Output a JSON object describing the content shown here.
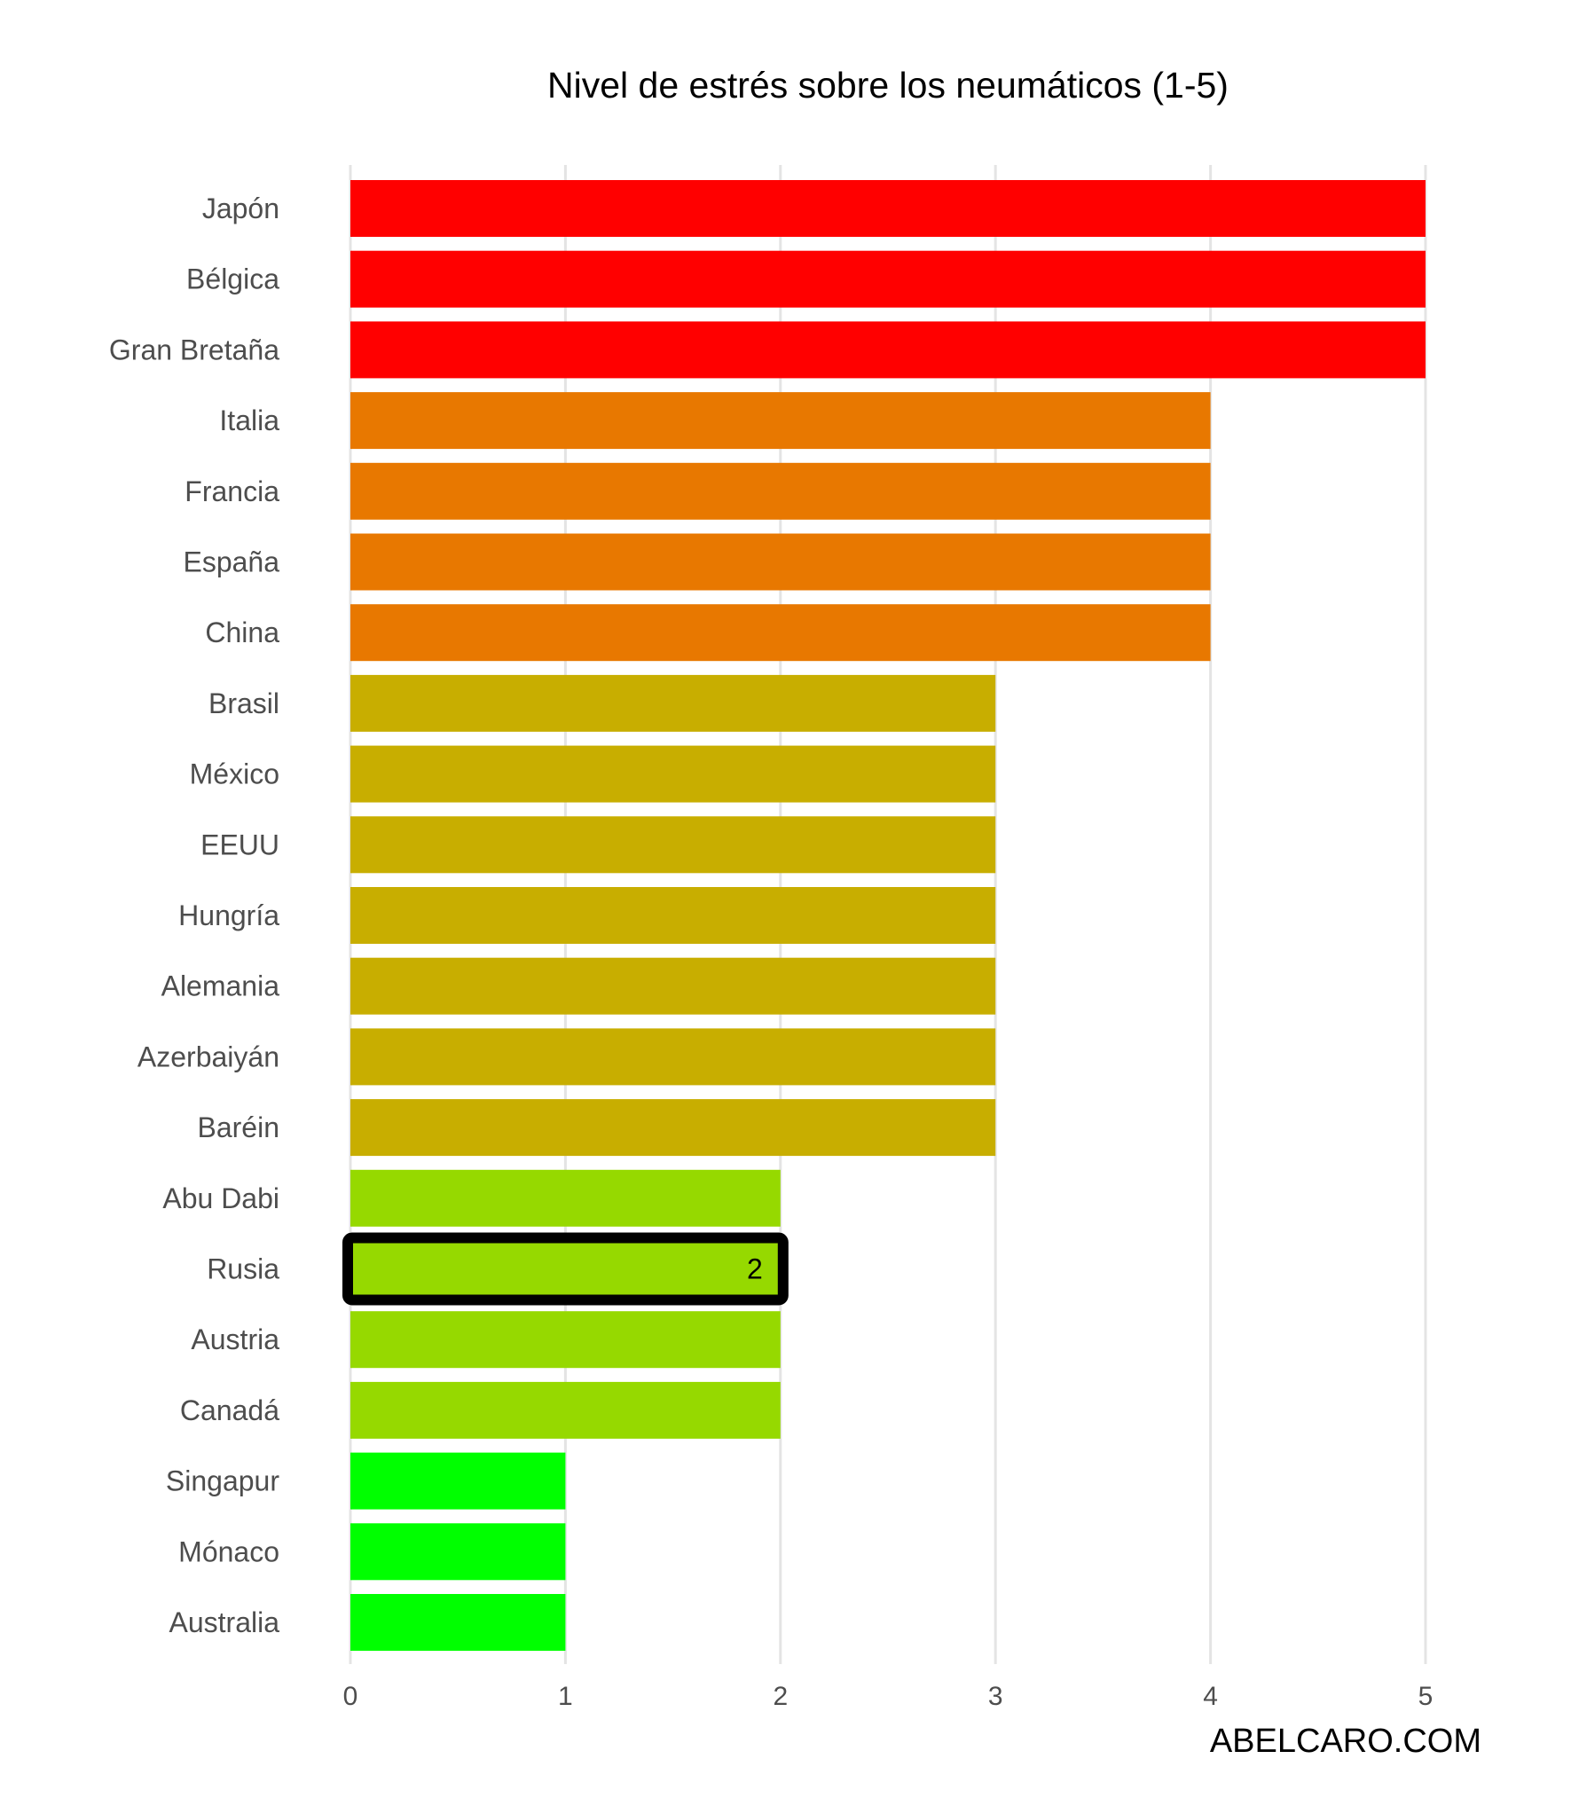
{
  "chart_data": {
    "type": "bar",
    "orientation": "horizontal",
    "title": "Nivel de estrés sobre los neumáticos (1-5)",
    "xlabel": "",
    "ylabel": "",
    "xlim": [
      0,
      5
    ],
    "xticks": [
      0,
      1,
      2,
      3,
      4,
      5
    ],
    "grid": "vertical",
    "categories": [
      "Japón",
      "Bélgica",
      "Gran Bretaña",
      "Italia",
      "Francia",
      "España",
      "China",
      "Brasil",
      "México",
      "EEUU",
      "Hungría",
      "Alemania",
      "Azerbaiyán",
      "Baréin",
      "Abu Dabi",
      "Rusia",
      "Austria",
      "Canadá",
      "Singapur",
      "Mónaco",
      "Australia"
    ],
    "values": [
      5,
      5,
      5,
      4,
      4,
      4,
      4,
      3,
      3,
      3,
      3,
      3,
      3,
      3,
      2,
      2,
      2,
      2,
      1,
      1,
      1
    ],
    "colors_by_value": {
      "5": "#ff0000",
      "4": "#e87800",
      "3": "#c8ae00",
      "2": "#96d900",
      "1": "#00ff00"
    },
    "highlight": {
      "category": "Rusia",
      "value_label": "2",
      "outline_color": "#000000"
    }
  },
  "watermark": "ABELCARO.COM"
}
